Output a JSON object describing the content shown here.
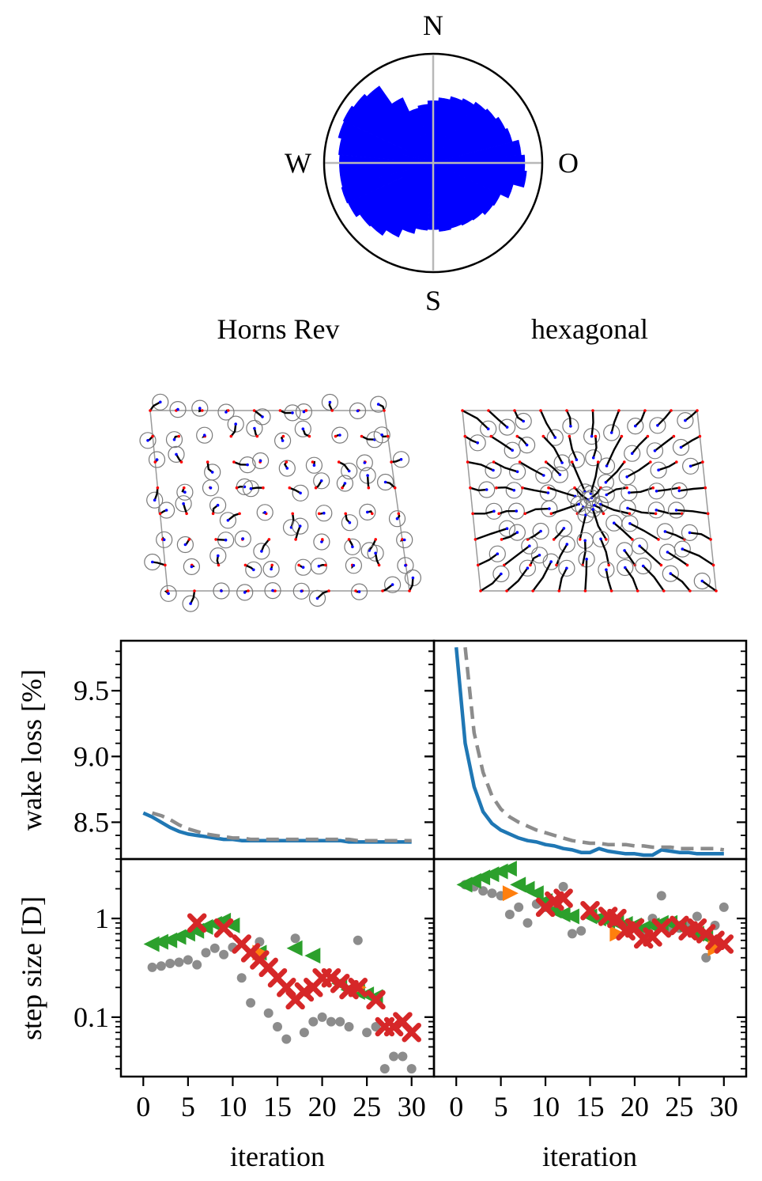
{
  "compass": {
    "north": "N",
    "south": "S",
    "west": "W",
    "east": "O"
  },
  "colors": {
    "rose": "#0000ff",
    "blue": "#1f77b4",
    "gray": "#8c8c8c",
    "orange": "#ff7f0e",
    "green": "#2ca02c",
    "red": "#d62728",
    "initial_position": "#ff0000",
    "final_position": "#0000ff"
  },
  "wind_rose": {
    "type": "polar-bar",
    "sector_count": 36,
    "radii_relative": [
      0.57,
      0.6,
      0.63,
      0.65,
      0.68,
      0.7,
      0.73,
      0.75,
      0.81,
      0.84,
      0.86,
      0.76,
      0.68,
      0.67,
      0.64,
      0.63,
      0.62,
      0.63,
      0.61,
      0.62,
      0.67,
      0.75,
      0.81,
      0.82,
      0.86,
      0.87,
      0.86,
      0.86,
      0.87,
      0.9,
      0.91,
      0.89,
      0.86,
      0.66,
      0.52,
      0.54
    ]
  },
  "layouts": [
    {
      "title": "Horns Rev",
      "rows": 8,
      "cols": 10,
      "max_move_rel": 0.55
    },
    {
      "title": "hexagonal",
      "rows": 8,
      "cols": 10,
      "max_move_rel": 1.35
    }
  ],
  "chart_data": [
    {
      "type": "line",
      "panel": "wake loss, Horns Rev",
      "xlabel": "iteration",
      "ylabel": "wake loss [%]",
      "xlim": [
        -2.5,
        32.5
      ],
      "ylim": [
        8.22,
        9.88
      ],
      "yticks": [
        8.5,
        9.0,
        9.5
      ],
      "ytick_labels": [
        "8.5",
        "9.0",
        "9.5"
      ],
      "series": [
        {
          "name": "solid",
          "style": "solid",
          "color": "#1f77b4",
          "x": [
            0,
            1,
            2,
            3,
            4,
            5,
            6,
            7,
            8,
            9,
            10,
            11,
            12,
            13,
            14,
            15,
            16,
            17,
            18,
            19,
            20,
            21,
            22,
            23,
            24,
            25,
            26,
            27,
            28,
            29,
            30
          ],
          "values": [
            8.57,
            8.54,
            8.5,
            8.46,
            8.43,
            8.41,
            8.4,
            8.39,
            8.38,
            8.37,
            8.37,
            8.36,
            8.36,
            8.36,
            8.36,
            8.36,
            8.36,
            8.36,
            8.36,
            8.36,
            8.36,
            8.36,
            8.36,
            8.35,
            8.35,
            8.35,
            8.35,
            8.35,
            8.35,
            8.35,
            8.35
          ]
        },
        {
          "name": "dashed",
          "style": "dashed",
          "color": "#8c8c8c",
          "x": [
            1,
            2,
            3,
            4,
            5,
            6,
            7,
            8,
            9,
            10,
            11,
            12,
            13,
            14,
            15,
            16,
            17,
            18,
            19,
            20,
            21,
            22,
            23,
            24,
            25,
            26,
            27,
            28,
            29,
            30
          ],
          "values": [
            8.57,
            8.55,
            8.52,
            8.48,
            8.45,
            8.43,
            8.41,
            8.4,
            8.39,
            8.38,
            8.38,
            8.37,
            8.37,
            8.37,
            8.37,
            8.37,
            8.37,
            8.37,
            8.37,
            8.37,
            8.37,
            8.37,
            8.37,
            8.36,
            8.36,
            8.36,
            8.36,
            8.36,
            8.36,
            8.36
          ]
        }
      ]
    },
    {
      "type": "line",
      "panel": "wake loss, hexagonal",
      "xlabel": "iteration",
      "ylabel": "wake loss [%]",
      "xlim": [
        -2.5,
        32.5
      ],
      "ylim": [
        8.22,
        9.88
      ],
      "series": [
        {
          "name": "solid",
          "style": "solid",
          "color": "#1f77b4",
          "x": [
            0,
            1,
            2,
            3,
            4,
            5,
            6,
            7,
            8,
            9,
            10,
            11,
            12,
            13,
            14,
            15,
            16,
            17,
            18,
            19,
            20,
            21,
            22,
            23,
            24,
            25,
            26,
            27,
            28,
            29,
            30
          ],
          "values": [
            9.83,
            9.1,
            8.77,
            8.58,
            8.49,
            8.44,
            8.41,
            8.38,
            8.36,
            8.35,
            8.33,
            8.32,
            8.3,
            8.29,
            8.27,
            8.27,
            8.3,
            8.28,
            8.27,
            8.26,
            8.26,
            8.25,
            8.25,
            8.29,
            8.28,
            8.27,
            8.27,
            8.26,
            8.26,
            8.26,
            8.26
          ]
        },
        {
          "name": "dashed",
          "style": "dashed",
          "color": "#8c8c8c",
          "x": [
            1,
            2,
            3,
            4,
            5,
            6,
            7,
            8,
            9,
            10,
            11,
            12,
            13,
            14,
            15,
            16,
            17,
            18,
            19,
            20,
            21,
            22,
            23,
            24,
            25,
            26,
            27,
            28,
            29,
            30
          ],
          "values": [
            9.83,
            9.18,
            8.88,
            8.7,
            8.6,
            8.54,
            8.5,
            8.47,
            8.44,
            8.42,
            8.4,
            8.38,
            8.36,
            8.35,
            8.34,
            8.34,
            8.33,
            8.33,
            8.33,
            8.32,
            8.32,
            8.31,
            8.31,
            8.31,
            8.3,
            8.3,
            8.3,
            8.3,
            8.3,
            8.29
          ]
        }
      ]
    },
    {
      "type": "scatter",
      "panel": "step size, Horns Rev",
      "xlabel": "iteration",
      "ylabel": "step size [D]",
      "yscale": "log",
      "xlim": [
        -2.5,
        32.5
      ],
      "ylim": [
        0.025,
        4.0
      ],
      "xticks": [
        0,
        5,
        10,
        15,
        20,
        25,
        30
      ],
      "xtick_labels": [
        "0",
        "5",
        "10",
        "15",
        "20",
        "25",
        "30"
      ],
      "yticks": [
        0.1,
        1
      ],
      "ytick_labels": [
        "0.1",
        "1"
      ],
      "series": [
        {
          "name": "gray dots",
          "marker": "circle",
          "color": "#8c8c8c",
          "x": [
            1,
            2,
            3,
            4,
            5,
            6,
            7,
            8,
            9,
            10,
            11,
            12,
            13,
            14,
            15,
            16,
            17,
            18,
            19,
            20,
            21,
            22,
            23,
            24,
            25,
            26,
            27,
            28,
            29,
            30
          ],
          "values": [
            0.32,
            0.33,
            0.35,
            0.36,
            0.38,
            0.34,
            0.45,
            0.5,
            0.43,
            0.51,
            0.25,
            0.14,
            0.58,
            0.11,
            0.08,
            0.06,
            0.63,
            0.07,
            0.09,
            0.1,
            0.09,
            0.09,
            0.08,
            0.6,
            0.07,
            0.08,
            0.03,
            0.04,
            0.04,
            0.03
          ]
        },
        {
          "name": "green triangles",
          "marker": "triangle-left",
          "color": "#2ca02c",
          "x": [
            1,
            2,
            3,
            4,
            5,
            6,
            7,
            8,
            9,
            10,
            13,
            17,
            19,
            22,
            23,
            24,
            25,
            26
          ],
          "values": [
            0.55,
            0.58,
            0.6,
            0.65,
            0.7,
            0.75,
            0.82,
            0.88,
            0.95,
            0.85,
            0.45,
            0.5,
            0.42,
            0.22,
            0.19,
            0.18,
            0.17,
            0.16
          ]
        },
        {
          "name": "orange triangles",
          "marker": "triangle-right",
          "color": "#ff7f0e",
          "x": [
            13,
            24
          ],
          "values": [
            0.45,
            0.2
          ]
        },
        {
          "name": "red crosses",
          "marker": "x",
          "color": "#d62728",
          "x": [
            6,
            9,
            11,
            12,
            13,
            14,
            15,
            16,
            17,
            18,
            19,
            20,
            21,
            22,
            23,
            24,
            26,
            27,
            28,
            29,
            30
          ],
          "values": [
            0.9,
            0.8,
            0.55,
            0.45,
            0.38,
            0.32,
            0.25,
            0.2,
            0.15,
            0.18,
            0.2,
            0.25,
            0.25,
            0.22,
            0.19,
            0.2,
            0.15,
            0.08,
            0.08,
            0.09,
            0.07
          ]
        }
      ]
    },
    {
      "type": "scatter",
      "panel": "step size, hexagonal",
      "xlabel": "iteration",
      "ylabel": "step size [D]",
      "yscale": "log",
      "xlim": [
        -2.5,
        32.5
      ],
      "ylim": [
        0.025,
        4.0
      ],
      "xticks": [
        0,
        5,
        10,
        15,
        20,
        25,
        30
      ],
      "xtick_labels": [
        "0",
        "5",
        "10",
        "15",
        "20",
        "25",
        "30"
      ],
      "series": [
        {
          "name": "gray dots",
          "marker": "circle",
          "color": "#8c8c8c",
          "x": [
            1,
            2,
            3,
            4,
            5,
            6,
            7,
            8,
            9,
            10,
            11,
            12,
            13,
            14,
            15,
            16,
            17,
            18,
            19,
            20,
            21,
            22,
            23,
            24,
            25,
            26,
            27,
            28,
            29,
            30
          ],
          "values": [
            2.2,
            2.1,
            1.9,
            1.8,
            1.7,
            1.1,
            1.3,
            0.9,
            1.4,
            1.3,
            1.2,
            2.1,
            0.7,
            0.75,
            1.1,
            1.0,
            1.0,
            0.95,
            0.85,
            0.8,
            0.7,
            1.0,
            1.7,
            0.75,
            0.8,
            0.85,
            1.05,
            0.4,
            0.85,
            1.3
          ]
        },
        {
          "name": "green triangles",
          "marker": "triangle-left",
          "color": "#2ca02c",
          "x": [
            1,
            2,
            3,
            4,
            5,
            6,
            7,
            8,
            9,
            10,
            11,
            12,
            13,
            15,
            16,
            17,
            18,
            19,
            20,
            21,
            22,
            23,
            24,
            25,
            26,
            27,
            28
          ],
          "values": [
            2.2,
            2.4,
            2.6,
            2.8,
            3.0,
            3.2,
            2.2,
            2.0,
            1.8,
            1.5,
            1.2,
            1.1,
            1.05,
            1.05,
            1.0,
            0.95,
            0.9,
            0.88,
            0.85,
            0.8,
            0.85,
            0.9,
            0.9,
            0.85,
            0.75,
            0.7,
            0.65
          ]
        },
        {
          "name": "orange triangles",
          "marker": "triangle-right",
          "color": "#ff7f0e",
          "x": [
            6,
            18,
            29
          ],
          "values": [
            1.8,
            0.7,
            0.5
          ]
        },
        {
          "name": "red crosses",
          "marker": "x",
          "color": "#d62728",
          "x": [
            10,
            11,
            12,
            15,
            17,
            18,
            19,
            20,
            21,
            22,
            23,
            25,
            26,
            27,
            28,
            29,
            30
          ],
          "values": [
            1.3,
            1.5,
            1.6,
            1.2,
            1.05,
            1.0,
            0.75,
            0.8,
            0.62,
            0.65,
            0.8,
            0.85,
            0.75,
            0.8,
            0.7,
            0.6,
            0.55
          ]
        }
      ]
    }
  ]
}
